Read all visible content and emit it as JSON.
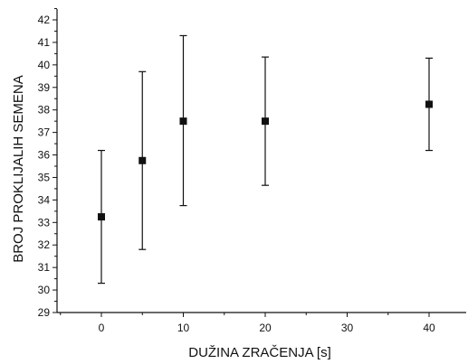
{
  "chart_data": {
    "type": "scatter",
    "title": "",
    "xlabel": "DUŽINA ZRAČENJA [s]",
    "ylabel": "BROJ PROKLIJALIH SEMENA",
    "xlim": [
      -5,
      45
    ],
    "ylim": [
      29,
      42.5
    ],
    "x_ticks": [
      0,
      10,
      20,
      30,
      40
    ],
    "x_tick_labels": [
      "0",
      "10",
      "20",
      "30",
      "40"
    ],
    "y_ticks": [
      29,
      30,
      31,
      32,
      33,
      34,
      35,
      36,
      37,
      38,
      39,
      40,
      41,
      42
    ],
    "y_tick_labels": [
      "29",
      "30",
      "31",
      "32",
      "33",
      "34",
      "35",
      "36",
      "37",
      "38",
      "39",
      "40",
      "41",
      "42"
    ],
    "grid": false,
    "legend": "none",
    "marker": "square",
    "marker_color": "#111111",
    "series": [
      {
        "x": [
          0,
          5,
          10,
          20,
          40
        ],
        "y": [
          33.25,
          35.75,
          37.5,
          37.5,
          38.25
        ],
        "error_low": [
          30.3,
          31.8,
          33.75,
          34.65,
          36.2
        ],
        "error_high": [
          36.2,
          39.7,
          41.3,
          40.35,
          40.3
        ]
      }
    ]
  }
}
